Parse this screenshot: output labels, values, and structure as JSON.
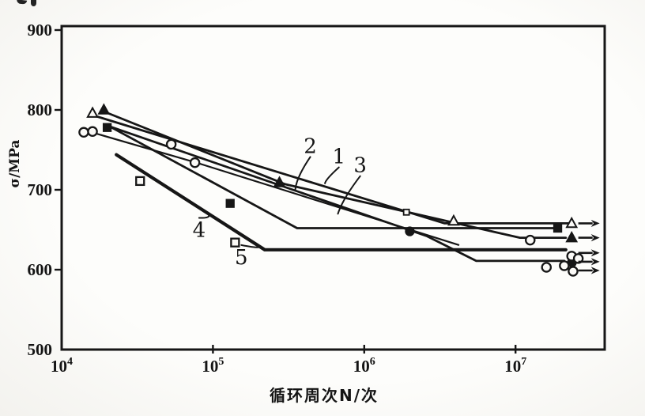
{
  "axes": {
    "y_title": "σ/MPa",
    "x_title": "循环周次N/次",
    "y_ticks": [
      900,
      800,
      700,
      600,
      500
    ],
    "x_ticks": [
      {
        "base": "10",
        "exp": "4",
        "n": 10000
      },
      {
        "base": "10",
        "exp": "5",
        "n": 100000
      },
      {
        "base": "10",
        "exp": "6",
        "n": 1000000
      },
      {
        "base": "10",
        "exp": "7",
        "n": 10000000
      }
    ]
  },
  "chart_data": {
    "type": "line",
    "title": "",
    "xlabel": "循环周次N/次",
    "ylabel": "σ/MPa",
    "x_scale": "log",
    "xlim": [
      10000,
      39000000
    ],
    "ylim": [
      500,
      900
    ],
    "grid": false,
    "legend_position": "none (curves numbered 1-5 with leader lines)",
    "series": [
      {
        "label": "1",
        "marker": "triangle-open",
        "line": [
          [
            17000,
            792
          ],
          [
            3400000,
            658
          ],
          [
            22500000,
            658
          ]
        ],
        "points": [
          [
            16000,
            796
          ],
          [
            3900000,
            661
          ],
          [
            23500000,
            658
          ]
        ],
        "runout": true
      },
      {
        "label": "2",
        "marker": "triangle-filled",
        "line": [
          [
            19000,
            798
          ],
          [
            300000,
            707
          ],
          [
            10700000,
            640
          ],
          [
            21500000,
            640
          ]
        ],
        "points": [
          [
            19000,
            800
          ],
          [
            275000,
            709
          ],
          [
            23500000,
            640
          ]
        ],
        "runout": true
      },
      {
        "label": "3",
        "marker": "circle-filled",
        "line": [
          [
            21000,
            779
          ],
          [
            2600000,
            642
          ],
          [
            5500000,
            611
          ],
          [
            21000000,
            611
          ]
        ],
        "points": [
          [
            2000000,
            648
          ],
          [
            23600000,
            609
          ]
        ],
        "runout": true
      },
      {
        "label": "4",
        "marker": "square-filled",
        "line": [
          [
            20000,
            781
          ],
          [
            360000,
            652
          ],
          [
            18000000,
            652
          ]
        ],
        "points": [
          [
            20000,
            778
          ],
          [
            130000,
            683
          ],
          [
            19000000,
            652
          ]
        ],
        "runout": false
      },
      {
        "label": "5",
        "marker": "square-open",
        "thick": true,
        "line": [
          [
            23000,
            744
          ],
          [
            220000,
            625
          ],
          [
            21500000,
            625
          ]
        ],
        "points": [
          [
            33000,
            711
          ],
          [
            140000,
            634
          ]
        ],
        "runout": true
      },
      {
        "label": "",
        "marker": "circle-open",
        "line": [
          [
            15200,
            773
          ],
          [
            81000,
            733
          ],
          [
            4200000,
            631
          ]
        ],
        "points": [
          [
            14000,
            772
          ],
          [
            16000,
            773
          ],
          [
            53000,
            757
          ],
          [
            76000,
            734
          ],
          [
            12500000,
            637
          ],
          [
            16000000,
            603
          ],
          [
            21000000,
            605
          ],
          [
            23500000,
            617
          ],
          [
            26000000,
            614
          ],
          [
            24000000,
            598
          ]
        ],
        "runout": true
      }
    ],
    "extra_markers": [
      {
        "marker": "square-open-small",
        "n": 1900000,
        "sigma": 672
      }
    ],
    "runout_arrows": {
      "n_from": 26000000,
      "n_to": 36000000,
      "sigmas": [
        658,
        640,
        621,
        610,
        599
      ]
    },
    "annotations": [
      {
        "text": "1",
        "n": 680000,
        "sigma": 742,
        "to_n": 550000,
        "to_sigma": 708
      },
      {
        "text": "2",
        "n": 440000,
        "sigma": 755,
        "to_n": 350000,
        "to_sigma": 700
      },
      {
        "text": "3",
        "n": 940000,
        "sigma": 731,
        "to_n": 670000,
        "to_sigma": 670
      },
      {
        "text": "4",
        "n": 81000,
        "sigma": 650,
        "to_n": 94000,
        "to_sigma": 668
      },
      {
        "text": "5",
        "n": 154000,
        "sigma": 616,
        "to_n": 200000,
        "to_sigma": 628
      }
    ]
  }
}
